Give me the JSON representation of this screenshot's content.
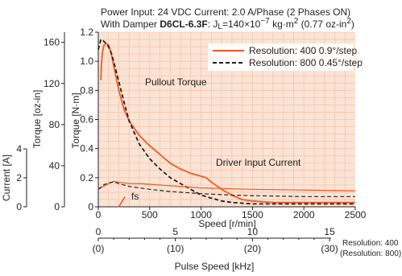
{
  "chart_data": {
    "type": "line",
    "title_line1": "Power Input: 24 VDC    Current: 2.0 A/Phase (2 Phases ON)",
    "title_line2_prefix": "With Damper ",
    "title_line2_model": "D6CL-6.3F",
    "title_line2_suffix": ": J",
    "title_line2_sub": "L",
    "title_line2_value": "=140×10",
    "title_line2_exp": "−7",
    "title_line2_unit": " kg·m",
    "title_line2_unit_exp": "2",
    "title_line2_oz": " (0.77 oz-in",
    "title_line2_oz_exp": "2",
    "title_line2_close": ")",
    "xlabel": "Speed [r/min]",
    "ylabel_nm": "Torque [N·m]",
    "ylabel_ozin": "Torque [oz-in]",
    "ylabel_current": "Current [A]",
    "xlim": [
      0,
      2500
    ],
    "ylim": [
      0,
      1.2
    ],
    "x_ticks": [
      "0",
      "500",
      "1000",
      "1500",
      "2000",
      "2500"
    ],
    "y_ticks": [
      "0",
      "0.2",
      "0.4",
      "0.6",
      "0.8",
      "1.0",
      "1.2"
    ],
    "ozin_ticks": [
      "0",
      "40",
      "80",
      "120",
      "160"
    ],
    "current_ticks": [
      "0",
      "2",
      "4"
    ],
    "annotations": {
      "pullout": "Pullout Torque",
      "driver": "Driver Input Current",
      "fs": "fs"
    },
    "legend": [
      {
        "label": "Resolution: 400   0.9°/step",
        "color": "#f15a24",
        "dash": false
      },
      {
        "label": "Resolution: 800   0.45°/step",
        "color": "#231f20",
        "dash": true
      }
    ],
    "pulse_axis": {
      "label": "Pulse Speed [kHz]",
      "ticks_top": [
        "0",
        "5",
        "10",
        "15"
      ],
      "ticks_bottom": [
        "(0)",
        "(10)",
        "(20)",
        "(30)"
      ],
      "res_top": "Resolution: 400",
      "res_bottom": "(Resolution: 800)"
    },
    "series": [
      {
        "name": "Resolution: 400   0.9°/step",
        "kind": "torque",
        "color": "#f15a24",
        "dash": false,
        "x": [
          25,
          30,
          40,
          55,
          70,
          85,
          100,
          120,
          150,
          200,
          250,
          300,
          400,
          500,
          600,
          700,
          800,
          900,
          1000,
          1050,
          1100,
          1200,
          1300,
          1400,
          1500,
          1700,
          2000,
          2500
        ],
        "y": [
          0.87,
          0.97,
          1.06,
          1.11,
          1.12,
          1.12,
          1.11,
          1.07,
          0.97,
          0.8,
          0.67,
          0.59,
          0.49,
          0.42,
          0.36,
          0.3,
          0.26,
          0.23,
          0.21,
          0.2,
          0.17,
          0.12,
          0.08,
          0.05,
          0.04,
          0.03,
          0.03,
          0.03
        ]
      },
      {
        "name": "Resolution: 800   0.45°/step",
        "kind": "torque",
        "color": "#231f20",
        "dash": true,
        "x": [
          0,
          25,
          50,
          80,
          100,
          130,
          150,
          200,
          250,
          300,
          400,
          500,
          600,
          700,
          800,
          900,
          1000,
          1100,
          1200,
          1300,
          1500,
          2000,
          2500
        ],
        "y": [
          1.08,
          1.15,
          1.14,
          1.12,
          1.1,
          1.05,
          1.0,
          0.86,
          0.72,
          0.59,
          0.43,
          0.33,
          0.26,
          0.2,
          0.16,
          0.12,
          0.08,
          0.06,
          0.04,
          0.03,
          0.02,
          0.02,
          0.02
        ]
      },
      {
        "name": "Driver Input Current (Resolution: 400)",
        "kind": "current",
        "color": "#f15a24",
        "dash": false,
        "x": [
          0,
          50,
          100,
          150,
          200,
          300,
          400,
          500,
          700,
          1000,
          1500,
          2000,
          2500
        ],
        "y": [
          0.12,
          0.14,
          0.16,
          0.175,
          0.17,
          0.16,
          0.16,
          0.155,
          0.145,
          0.13,
          0.12,
          0.115,
          0.11
        ]
      },
      {
        "name": "Driver Input Current (Resolution: 800)",
        "kind": "current",
        "color": "#231f20",
        "dash": true,
        "x": [
          0,
          50,
          100,
          150,
          200,
          300,
          400,
          500,
          700,
          1000,
          1300,
          1600,
          2000,
          2500
        ],
        "y": [
          0.12,
          0.15,
          0.165,
          0.17,
          0.16,
          0.14,
          0.13,
          0.12,
          0.105,
          0.09,
          0.08,
          0.075,
          0.07,
          0.07
        ]
      }
    ],
    "fs_marker": {
      "x": [
        200,
        260
      ],
      "y": [
        0,
        0.07
      ]
    },
    "grid": true,
    "legend_position": "top-right",
    "colors": {
      "plot_background": "#fbe4d5",
      "grid": "#f3c7ab",
      "axis": "#231f20",
      "accent": "#f15a24"
    }
  }
}
